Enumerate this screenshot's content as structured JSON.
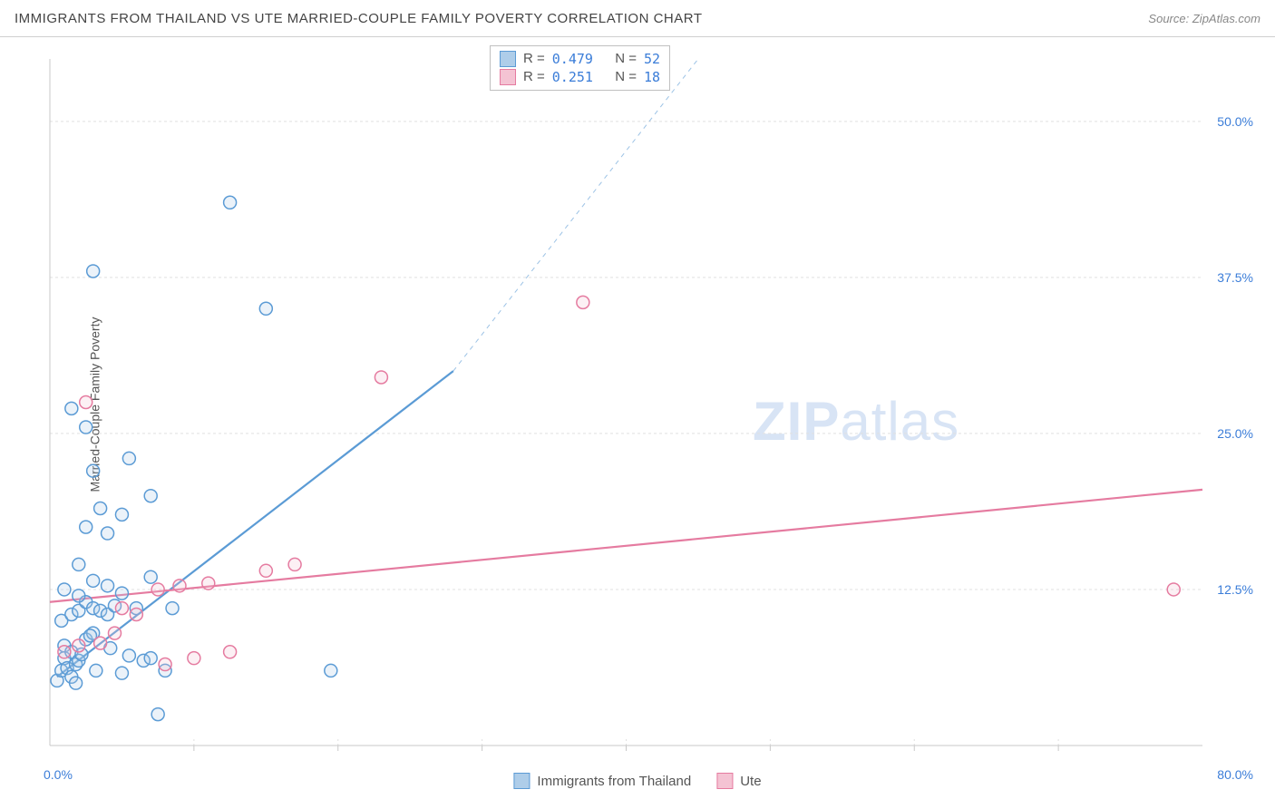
{
  "title": "IMMIGRANTS FROM THAILAND VS UTE MARRIED-COUPLE FAMILY POVERTY CORRELATION CHART",
  "source_label": "Source:",
  "source_name": "ZipAtlas.com",
  "y_label": "Married-Couple Family Poverty",
  "watermark_bold": "ZIP",
  "watermark_rest": "atlas",
  "chart": {
    "type": "scatter",
    "background_color": "#ffffff",
    "grid_color": "#e0e0e0",
    "axis_color": "#c8c8c8",
    "xlim": [
      0,
      80
    ],
    "ylim": [
      0,
      55
    ],
    "x_ticks": [
      0,
      80
    ],
    "x_tick_labels": [
      "0.0%",
      "80.0%"
    ],
    "y_ticks": [
      12.5,
      25.0,
      37.5,
      50.0
    ],
    "y_tick_labels": [
      "12.5%",
      "25.0%",
      "37.5%",
      "50.0%"
    ],
    "x_minor_ticks": [
      10,
      20,
      30,
      40,
      50,
      60,
      70
    ],
    "marker_radius": 7,
    "marker_stroke_width": 1.5,
    "marker_fill_opacity": 0.25,
    "series": [
      {
        "name": "Immigrants from Thailand",
        "color_stroke": "#5b9bd5",
        "color_fill": "#aecde9",
        "R": "0.479",
        "N": "52",
        "trend": {
          "x1": 0.5,
          "y1": 5.5,
          "x2": 28,
          "y2": 30,
          "dash_from_x": 28,
          "dash_to_x": 45,
          "dash_to_y": 55,
          "width": 2.2
        },
        "points": [
          [
            0.5,
            5.2
          ],
          [
            0.8,
            6.0
          ],
          [
            1.0,
            7.0
          ],
          [
            1.2,
            6.2
          ],
          [
            1.0,
            8.0
          ],
          [
            1.5,
            7.5
          ],
          [
            1.8,
            6.5
          ],
          [
            1.5,
            5.5
          ],
          [
            2.0,
            6.8
          ],
          [
            2.2,
            7.3
          ],
          [
            2.5,
            8.5
          ],
          [
            3.0,
            9.0
          ],
          [
            0.8,
            10.0
          ],
          [
            1.5,
            10.5
          ],
          [
            2.0,
            10.8
          ],
          [
            2.5,
            11.5
          ],
          [
            3.0,
            11.0
          ],
          [
            3.5,
            10.8
          ],
          [
            4.0,
            10.5
          ],
          [
            4.5,
            11.2
          ],
          [
            1.0,
            12.5
          ],
          [
            2.0,
            12.0
          ],
          [
            3.0,
            13.2
          ],
          [
            4.0,
            12.8
          ],
          [
            5.0,
            12.2
          ],
          [
            6.0,
            11.0
          ],
          [
            6.5,
            6.8
          ],
          [
            7.0,
            7.0
          ],
          [
            8.0,
            6.0
          ],
          [
            8.5,
            11.0
          ],
          [
            7.0,
            13.5
          ],
          [
            2.0,
            14.5
          ],
          [
            4.0,
            17.0
          ],
          [
            2.5,
            17.5
          ],
          [
            5.0,
            18.5
          ],
          [
            3.5,
            19.0
          ],
          [
            7.0,
            20.0
          ],
          [
            3.0,
            22.0
          ],
          [
            5.5,
            23.0
          ],
          [
            2.5,
            25.5
          ],
          [
            1.5,
            27.0
          ],
          [
            3.0,
            38.0
          ],
          [
            5.0,
            5.8
          ],
          [
            5.5,
            7.2
          ],
          [
            1.8,
            5.0
          ],
          [
            3.2,
            6.0
          ],
          [
            4.2,
            7.8
          ],
          [
            2.8,
            8.8
          ],
          [
            15.0,
            35.0
          ],
          [
            12.5,
            43.5
          ],
          [
            19.5,
            6.0
          ],
          [
            7.5,
            2.5
          ]
        ]
      },
      {
        "name": "Ute",
        "color_stroke": "#e57ba0",
        "color_fill": "#f4c3d3",
        "R": "0.251",
        "N": "18",
        "trend": {
          "x1": 0,
          "y1": 11.5,
          "x2": 80,
          "y2": 20.5,
          "width": 2.2
        },
        "points": [
          [
            1.0,
            7.5
          ],
          [
            2.0,
            8.0
          ],
          [
            3.5,
            8.2
          ],
          [
            4.5,
            9.0
          ],
          [
            6.0,
            10.5
          ],
          [
            7.5,
            12.5
          ],
          [
            9.0,
            12.8
          ],
          [
            8.0,
            6.5
          ],
          [
            10.0,
            7.0
          ],
          [
            11.0,
            13.0
          ],
          [
            12.5,
            7.5
          ],
          [
            15.0,
            14.0
          ],
          [
            17.0,
            14.5
          ],
          [
            2.5,
            27.5
          ],
          [
            23.0,
            29.5
          ],
          [
            37.0,
            35.5
          ],
          [
            78.0,
            12.5
          ],
          [
            5.0,
            11.0
          ]
        ]
      }
    ],
    "legend": {
      "items": [
        {
          "label": "Immigrants from Thailand",
          "fill": "#aecde9",
          "stroke": "#5b9bd5"
        },
        {
          "label": "Ute",
          "fill": "#f4c3d3",
          "stroke": "#e57ba0"
        }
      ]
    },
    "stats_labels": {
      "R": "R =",
      "N": "N ="
    }
  }
}
